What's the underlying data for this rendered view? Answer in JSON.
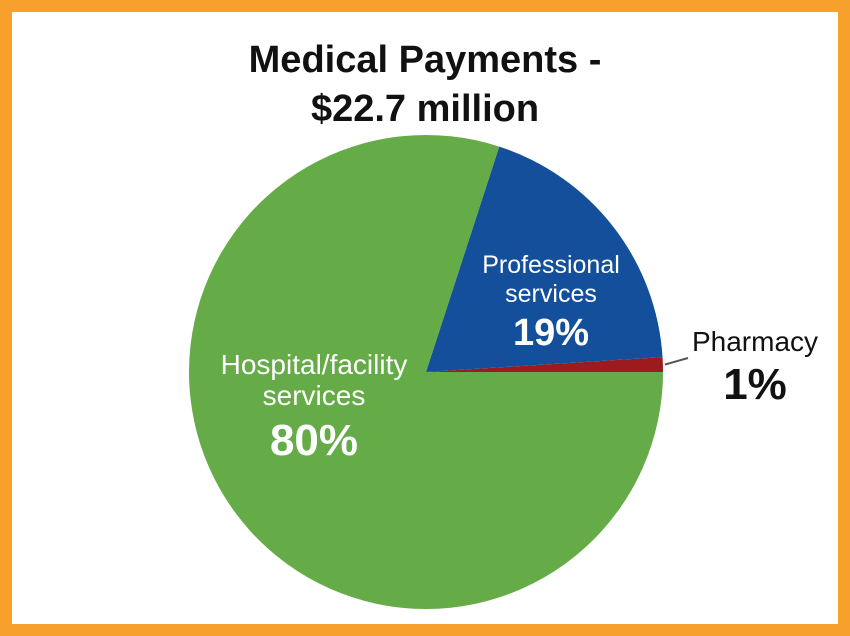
{
  "title_lines": [
    "Medical Payments -",
    "$22.7 million"
  ],
  "colors": {
    "border": "#f7a12c",
    "background": "#ffffff"
  },
  "chart_data": {
    "type": "pie",
    "title": "Medical Payments - $22.7 million",
    "start_angle_deg": 0,
    "direction": "counterclockwise",
    "slices": [
      {
        "key": "pharmacy",
        "label_lines": [
          "Pharmacy"
        ],
        "value": 1,
        "value_label": "1%",
        "color": "#9b1b1e",
        "label_color": "#111111"
      },
      {
        "key": "professional",
        "label_lines": [
          "Professional",
          "services"
        ],
        "value": 19,
        "value_label": "19%",
        "color": "#134f9a",
        "label_color": "#ffffff"
      },
      {
        "key": "hospital",
        "label_lines": [
          "Hospital/facility",
          "services"
        ],
        "value": 80,
        "value_label": "80%",
        "color": "#65ac48",
        "label_color": "#ffffff"
      }
    ]
  }
}
